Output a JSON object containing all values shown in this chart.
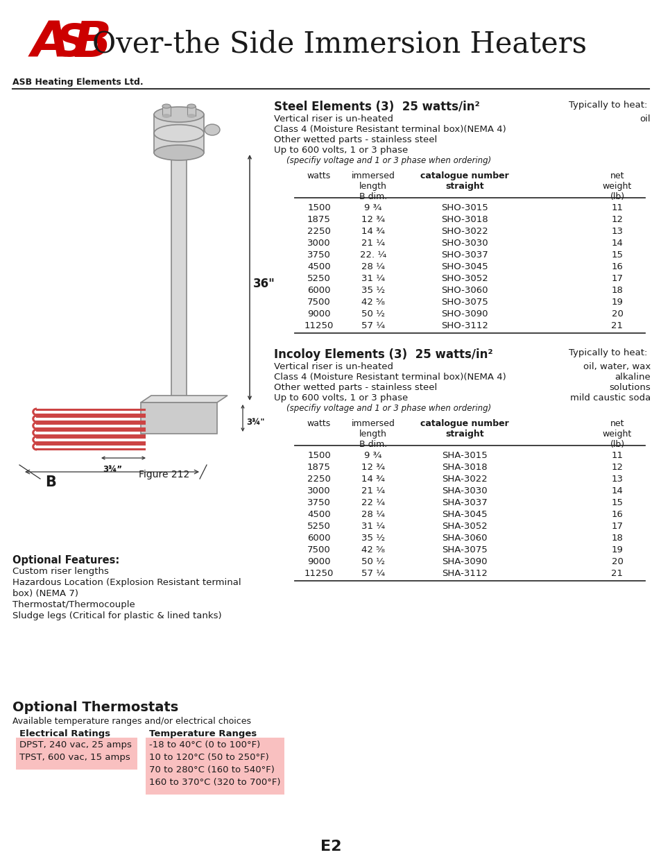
{
  "title": "Over-the Side Immersion Heaters",
  "company": "ASB Heating Elements Ltd.",
  "bg_color": "#ffffff",
  "page_label": "E2",
  "steel_bullets": [
    "Vertical riser is un-heated",
    "Class 4 (Moisture Resistant terminal box)(NEMA 4)",
    "Other wetted parts - stainless steel",
    "Up to 600 volts, 1 or 3 phase",
    "(specifiy voltage and 1 or 3 phase when ordering)"
  ],
  "steel_rows": [
    [
      "1500",
      "9 ¾",
      "SHO-3015",
      "11"
    ],
    [
      "1875",
      "12 ¾",
      "SHO-3018",
      "12"
    ],
    [
      "2250",
      "14 ¾",
      "SHO-3022",
      "13"
    ],
    [
      "3000",
      "21 ¼",
      "SHO-3030",
      "14"
    ],
    [
      "3750",
      "22. ¼",
      "SHO-3037",
      "15"
    ],
    [
      "4500",
      "28 ¼",
      "SHO-3045",
      "16"
    ],
    [
      "5250",
      "31 ¼",
      "SHO-3052",
      "17"
    ],
    [
      "6000",
      "35 ½",
      "SHO-3060",
      "18"
    ],
    [
      "7500",
      "42 ⁵⁄₈",
      "SHO-3075",
      "19"
    ],
    [
      "9000",
      "50 ½",
      "SHO-3090",
      "20"
    ],
    [
      "11250",
      "57 ¼",
      "SHO-3112",
      "21"
    ]
  ],
  "incoloy_heat_types": [
    "oil, water, wax",
    "alkaline",
    "solutions",
    "mild caustic soda"
  ],
  "incoloy_bullets": [
    "Vertical riser is un-heated",
    "Class 4 (Moisture Resistant terminal box)(NEMA 4)",
    "Other wetted parts - stainless steel",
    "Up to 600 volts, 1 or 3 phase",
    "(specifiy voltage and 1 or 3 phase when ordering)"
  ],
  "incoloy_rows": [
    [
      "1500",
      "9 ¾",
      "SHA-3015",
      "11"
    ],
    [
      "1875",
      "12 ¾",
      "SHA-3018",
      "12"
    ],
    [
      "2250",
      "14 ¾",
      "SHA-3022",
      "13"
    ],
    [
      "3000",
      "21 ¼",
      "SHA-3030",
      "14"
    ],
    [
      "3750",
      "22 ¼",
      "SHA-3037",
      "15"
    ],
    [
      "4500",
      "28 ¼",
      "SHA-3045",
      "16"
    ],
    [
      "5250",
      "31 ¼",
      "SHA-3052",
      "17"
    ],
    [
      "6000",
      "35 ½",
      "SHA-3060",
      "18"
    ],
    [
      "7500",
      "42 ⁵⁄₈",
      "SHA-3075",
      "19"
    ],
    [
      "9000",
      "50 ½",
      "SHA-3090",
      "20"
    ],
    [
      "11250",
      "57 ¼",
      "SHA-3112",
      "21"
    ]
  ],
  "optional_features": [
    "Custom riser lengths",
    "Hazardous Location (Explosion Resistant terminal",
    "box) (NEMA 7)",
    "Thermostat/Thermocouple",
    "Sludge legs (Critical for plastic & lined tanks)"
  ],
  "optional_thermostats_title": "Optional Thermostats",
  "thermostats_subtitle": "Available temperature ranges and/or electrical choices",
  "electrical_header": "Electrical Ratings",
  "temp_header": "Temperature Ranges",
  "electrical_ratings": [
    "DPST, 240 vac, 25 amps",
    "TPST, 600 vac, 15 amps"
  ],
  "temp_ranges": [
    "-18 to 40°C (0 to 100°F)",
    "10 to 120°C (50 to 250°F)",
    "70 to 280°C (160 to 540°F)",
    "160 to 370°C (320 to 700°F)"
  ],
  "pink_bg": "#f9c0c0",
  "accent_red": "#cc0000",
  "text_color": "#1a1a1a",
  "line_color": "#333333"
}
